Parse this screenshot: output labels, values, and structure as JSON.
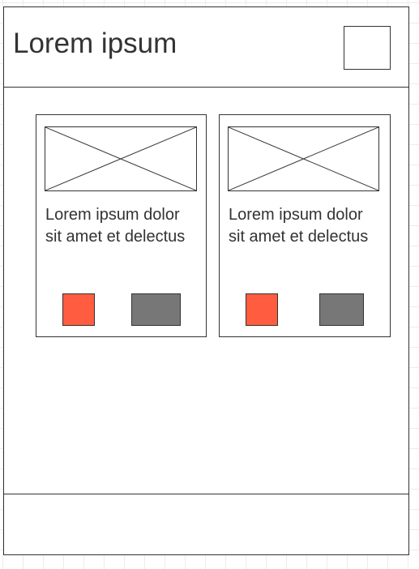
{
  "header": {
    "title": "Lorem ipsum",
    "action_icon": "square-placeholder-icon"
  },
  "cards": [
    {
      "image_icon": "image-placeholder-icon",
      "text": "Lorem ipsum dolor sit amet et delectus",
      "primary_button_color": "#ff5c40",
      "secondary_button_color": "#777777"
    },
    {
      "image_icon": "image-placeholder-icon",
      "text": "Lorem ipsum dolor sit amet et delectus",
      "primary_button_color": "#ff5c40",
      "secondary_button_color": "#777777"
    }
  ],
  "colors": {
    "border": "#333333",
    "text": "#333333",
    "accent": "#ff5c40",
    "muted": "#777777"
  }
}
